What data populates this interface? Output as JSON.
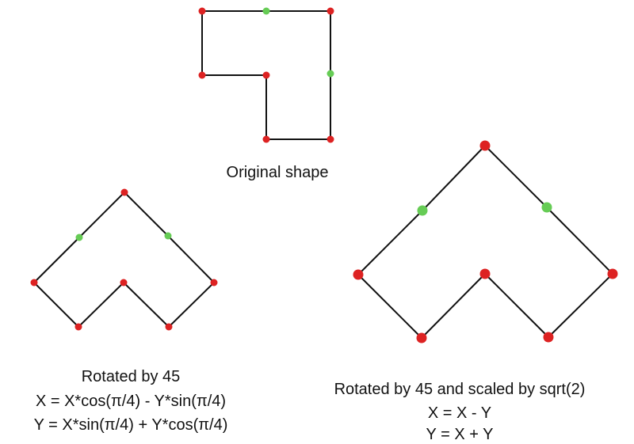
{
  "colors": {
    "edge": "#111111",
    "corner_vertex": "#dd2222",
    "midpoint_vertex": "#66cc55",
    "text": "#111111"
  },
  "captions": {
    "original": "Original shape",
    "rotated": {
      "title": "Rotated by 45",
      "formula_x": "X  = X*cos(π/4) - Y*sin(π/4)",
      "formula_y": "Y = X*sin(π/4) + Y*cos(π/4)"
    },
    "rotated_scaled": {
      "title": "Rotated by 45 and scaled by sqrt(2)",
      "formula_x": "X  = X - Y",
      "formula_y": "Y = X + Y"
    }
  },
  "shapes": {
    "original": {
      "vertices": [
        "corner",
        "midpoint",
        "corner",
        "midpoint",
        "corner",
        "corner",
        "corner",
        "corner"
      ]
    },
    "rotated": {
      "vertices": [
        "corner",
        "midpoint",
        "corner",
        "corner",
        "corner",
        "corner",
        "corner",
        "midpoint"
      ]
    },
    "rotated_scaled": {
      "vertices": [
        "corner",
        "midpoint",
        "corner",
        "corner",
        "corner",
        "corner",
        "corner",
        "midpoint"
      ]
    }
  }
}
